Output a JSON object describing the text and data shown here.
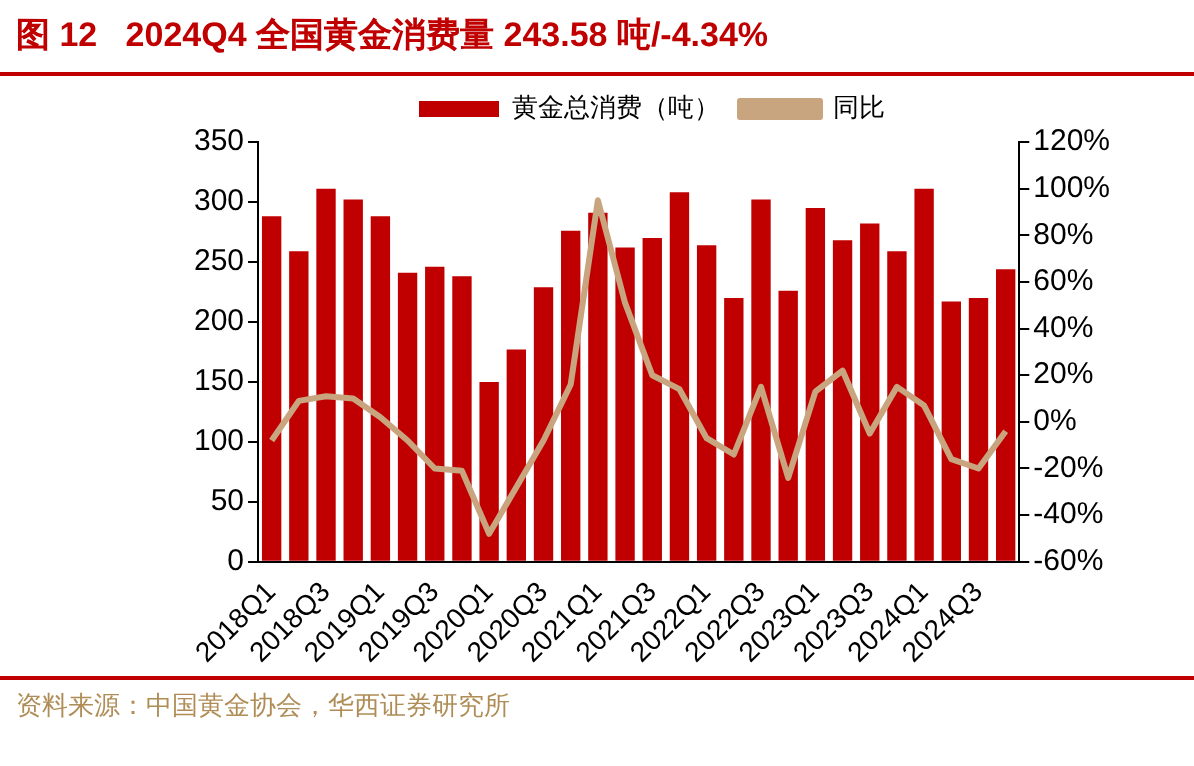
{
  "chart_data": {
    "type": "bar",
    "title": "图 12   2024Q4 全国黄金消费量 243.58 吨/-4.34%",
    "categories": [
      "2018Q1",
      null,
      "2018Q3",
      null,
      "2019Q1",
      null,
      "2019Q3",
      null,
      "2020Q1",
      null,
      "2020Q3",
      null,
      "2021Q1",
      null,
      "2021Q3",
      null,
      "2022Q1",
      null,
      "2022Q3",
      null,
      "2023Q1",
      null,
      "2023Q3",
      null,
      "2024Q1",
      null,
      "2024Q3",
      null
    ],
    "series": [
      {
        "name": "黄金总消费（吨）",
        "color": "#c00000",
        "values": [
          288,
          259,
          311,
          302,
          288,
          241,
          246,
          238,
          150,
          177,
          229,
          276,
          291,
          262,
          270,
          308,
          264,
          220,
          302,
          226,
          295,
          268,
          282,
          259,
          311,
          217,
          220,
          244
        ]
      },
      {
        "name": "同比",
        "type": "line",
        "axis": "y2",
        "color": "#c8a57f",
        "values": [
          -8,
          9,
          11,
          10,
          2,
          -8,
          -20,
          -21,
          -48,
          -28,
          -8,
          16,
          95,
          51,
          20,
          14,
          -7,
          -14,
          15,
          -24,
          13,
          22,
          -5,
          15,
          7,
          -16,
          -20,
          -4
        ]
      }
    ],
    "ylim": [
      0,
      350
    ],
    "yticks": [
      0,
      50,
      100,
      150,
      200,
      250,
      300,
      350
    ],
    "y2lim": [
      -60,
      120
    ],
    "y2ticks": [
      {
        "value": -60,
        "label": "-60%"
      },
      {
        "value": -40,
        "label": "-40%"
      },
      {
        "value": -20,
        "label": "-20%"
      },
      {
        "value": 0,
        "label": "0%"
      },
      {
        "value": 20,
        "label": "20%"
      },
      {
        "value": 40,
        "label": "40%"
      },
      {
        "value": 60,
        "label": "60%"
      },
      {
        "value": 80,
        "label": "80%"
      },
      {
        "value": 100,
        "label": "100%"
      },
      {
        "value": 120,
        "label": "120%"
      }
    ],
    "grid": false,
    "legend": "top",
    "marker": "none",
    "line_style": "solid",
    "annotations": [
      "资料来源：中国黄金协会，华西证券研究所"
    ]
  }
}
